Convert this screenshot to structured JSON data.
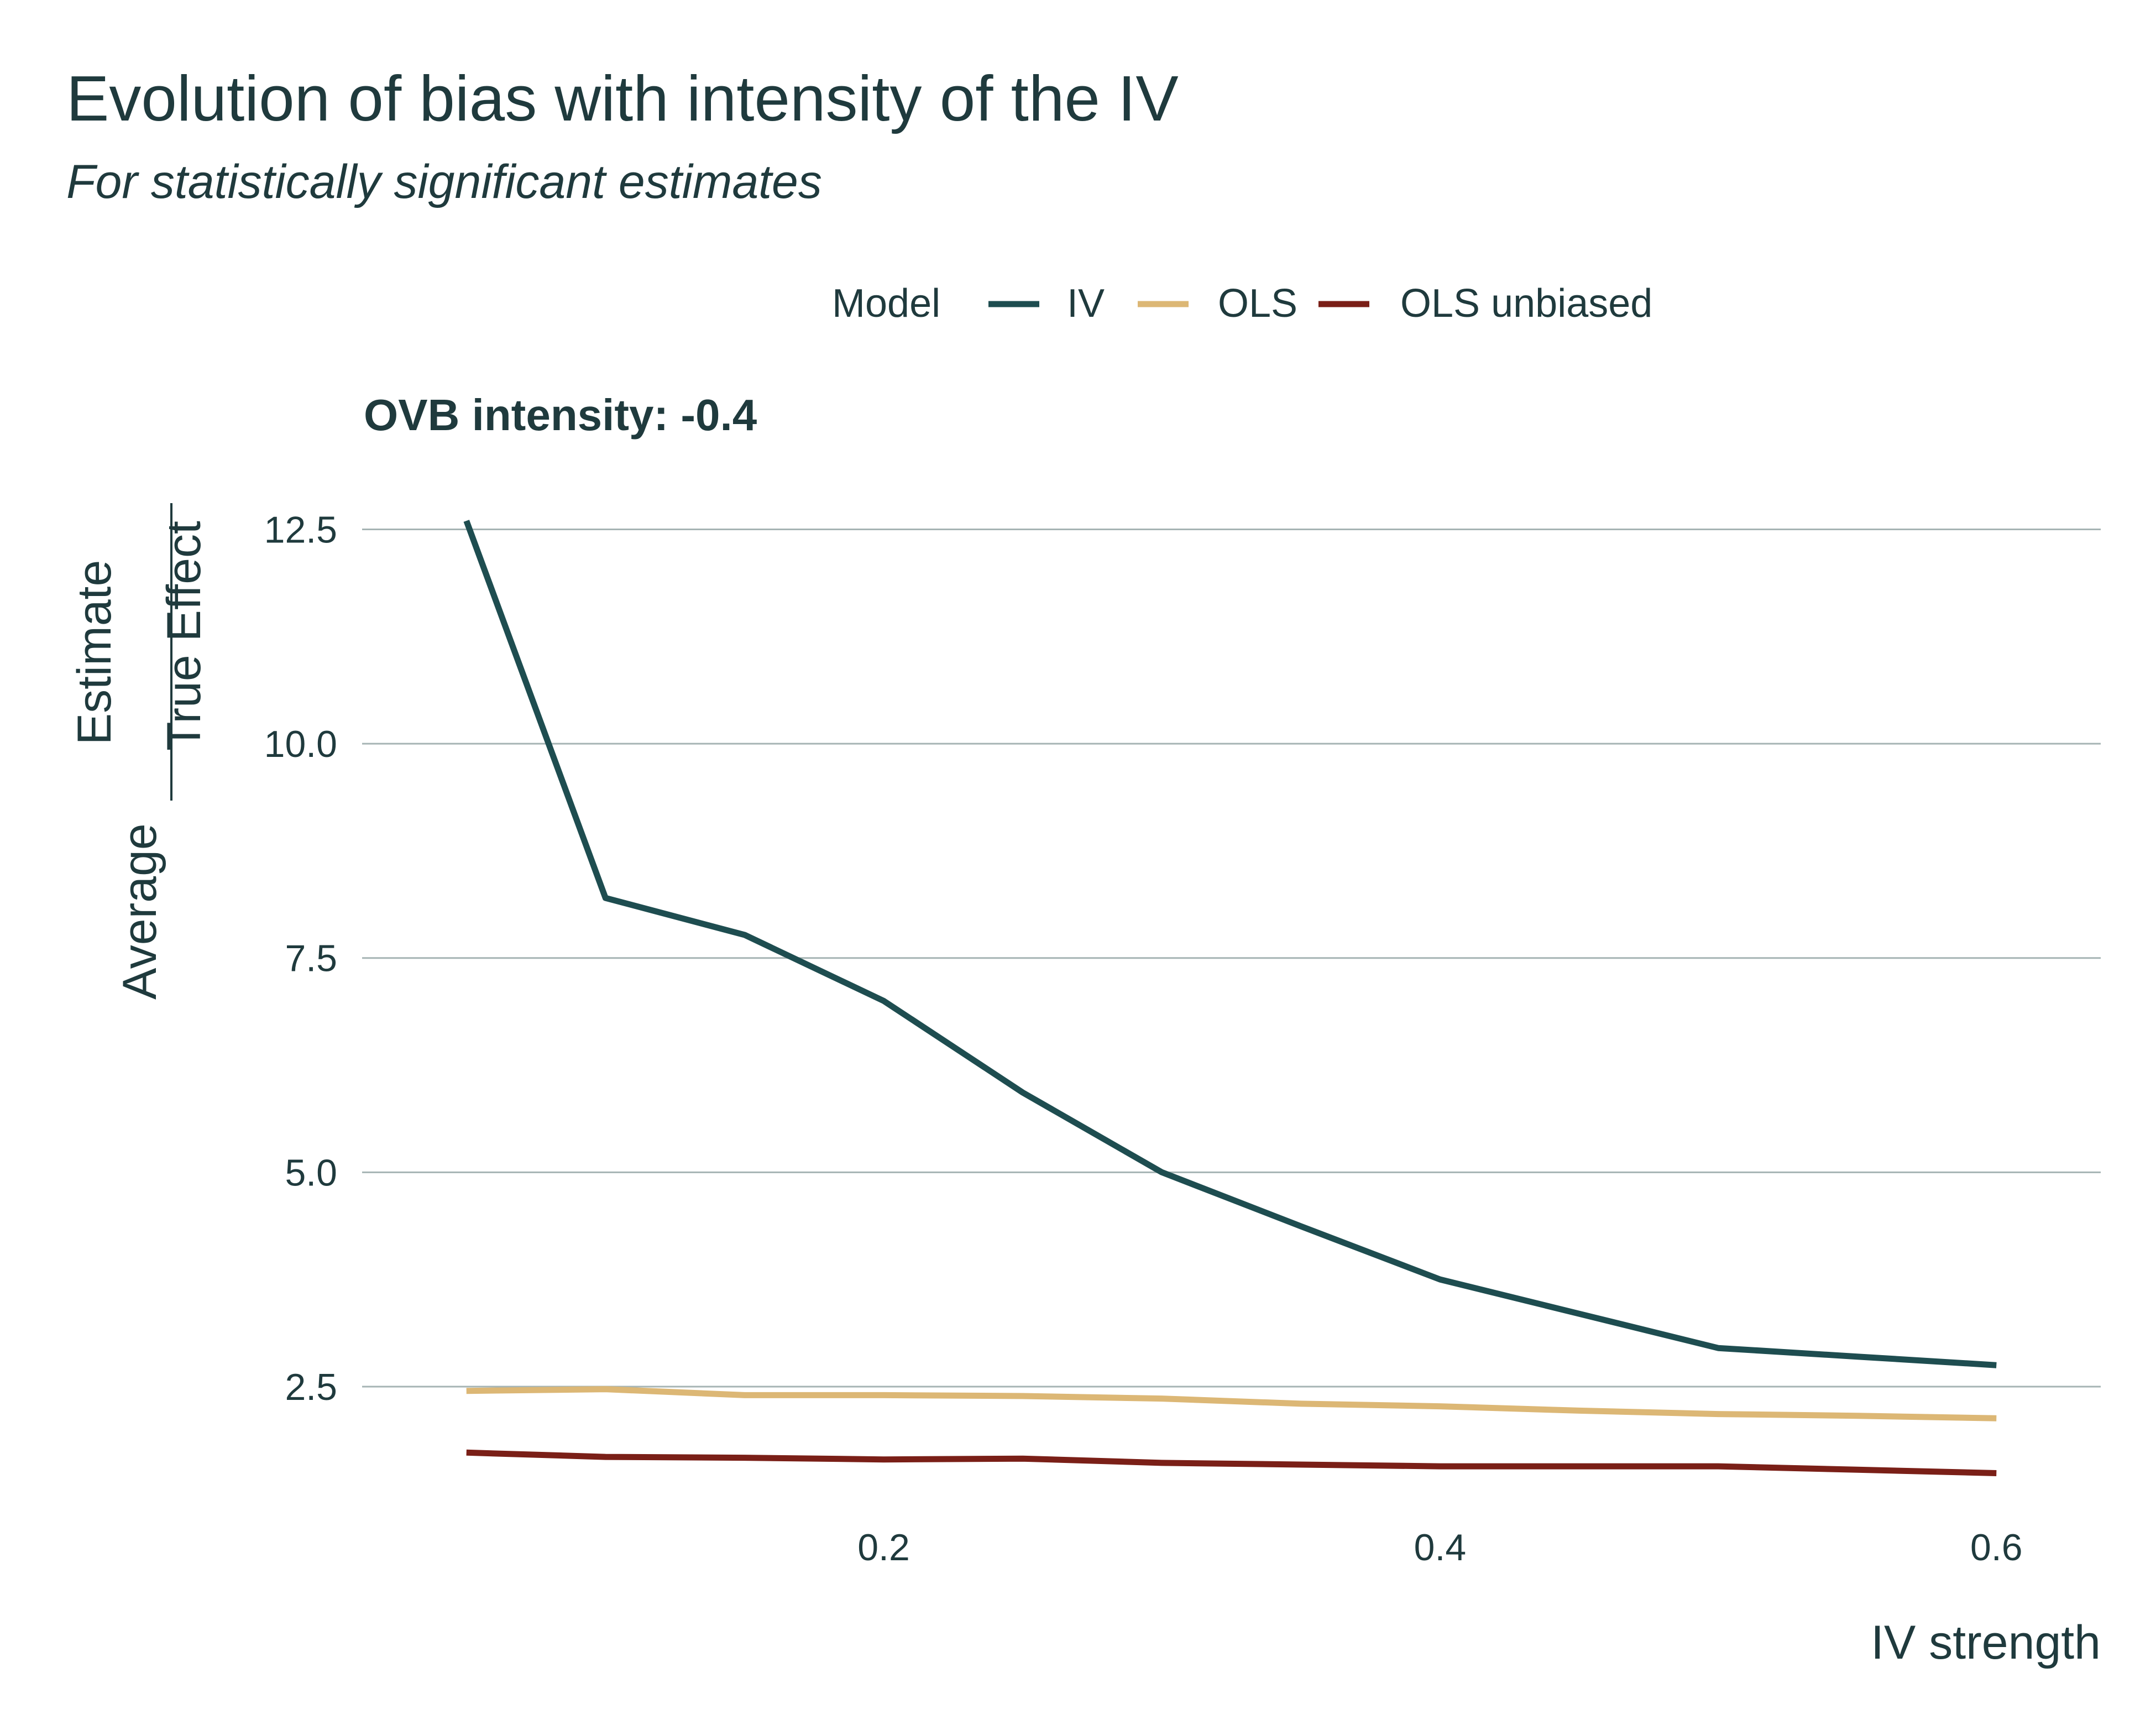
{
  "colors": {
    "IV": "#1e4d50",
    "OLS": "#dcb775",
    "OLS unbiased": "#7a1f17",
    "text": "#1f3a3d",
    "grid": "#a6b4b4"
  },
  "chart_data": {
    "type": "line",
    "title": "Evolution of bias with intensity of the IV",
    "subtitle": "For statistically significant estimates",
    "facet_label": "OVB intensity: -0.4",
    "xlabel": "IV strength",
    "ylabel": {
      "prefix": "Average",
      "numerator": "Estimate",
      "denominator": "True Effect"
    },
    "legend": {
      "title": "Model",
      "position": "top",
      "entries": [
        "IV",
        "OLS",
        "OLS unbiased"
      ]
    },
    "xlim": [
      0.0125,
      0.6375
    ],
    "ylim": [
      1.1,
      13.0
    ],
    "xticks": [
      0.2,
      0.4,
      0.6
    ],
    "xtick_labels": [
      "0.2",
      "0.4",
      "0.6"
    ],
    "yticks": [
      2.5,
      5.0,
      7.5,
      10.0,
      12.5
    ],
    "ytick_labels": [
      "2.5",
      "5.0",
      "7.5",
      "10.0",
      "12.5"
    ],
    "grid": "horizontal major",
    "x": [
      0.05,
      0.1,
      0.15,
      0.2,
      0.25,
      0.3,
      0.35,
      0.4,
      0.45,
      0.5,
      0.55,
      0.6
    ],
    "series": [
      {
        "name": "IV",
        "values": [
          12.6,
          8.2,
          7.77,
          7.0,
          5.93,
          5.0,
          4.37,
          3.75,
          3.35,
          2.95,
          2.85,
          2.75
        ]
      },
      {
        "name": "OLS",
        "values": [
          2.45,
          2.47,
          2.4,
          2.4,
          2.39,
          2.36,
          2.3,
          2.27,
          2.22,
          2.18,
          2.16,
          2.13
        ]
      },
      {
        "name": "OLS unbiased",
        "values": [
          1.73,
          1.68,
          1.67,
          1.65,
          1.66,
          1.61,
          1.59,
          1.57,
          1.57,
          1.57,
          1.53,
          1.49
        ]
      }
    ]
  }
}
